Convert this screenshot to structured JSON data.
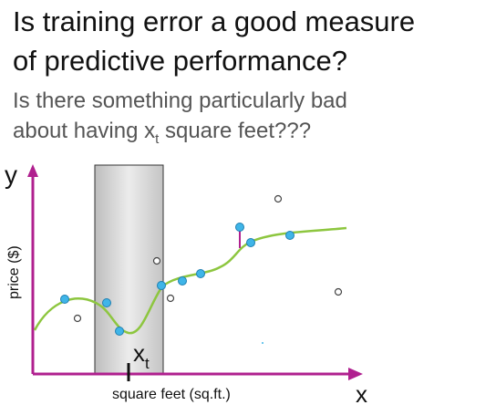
{
  "slide": {
    "title_line1": "Is training error a good measure",
    "title_line2": "of predictive performance?",
    "subtitle_line1": "Is there something particularly bad",
    "subtitle_line2_prefix": "about having x",
    "subtitle_line2_sub": "t",
    "subtitle_line2_suffix": " square feet???"
  },
  "plot": {
    "y_axis_label": "y",
    "x_axis_label": "x",
    "y_axis_caption": "price ($)",
    "x_axis_caption": "square feet (sq.ft.)",
    "xt_label": "x",
    "xt_sub": "t",
    "colors": {
      "axis": "#b0208f",
      "curve": "#8dc63f",
      "train_point": "#3fb5e8",
      "test_point": "#ffffff",
      "region": "#d9d9d9"
    }
  }
}
